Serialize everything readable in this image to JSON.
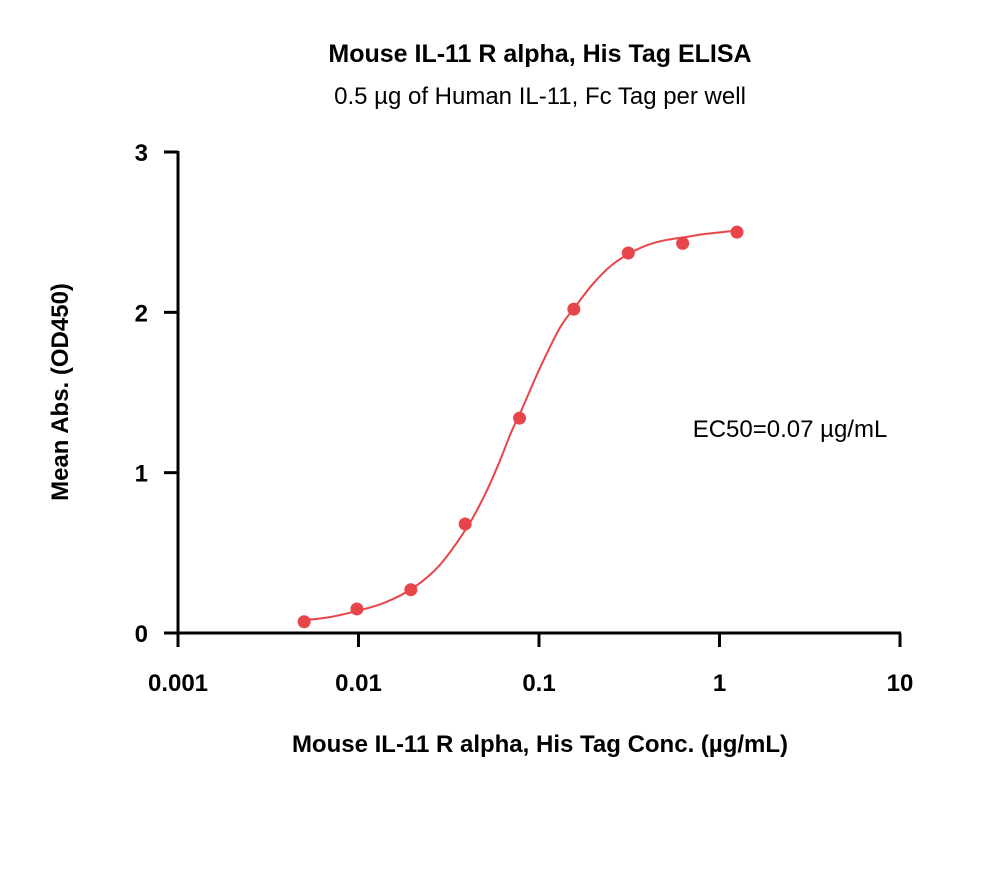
{
  "chart_data": {
    "type": "scatter",
    "title": "Mouse IL-11 R alpha, His Tag ELISA",
    "subtitle": "0.5 µg of Human IL-11, Fc Tag per well",
    "xlabel": "Mouse IL-11 R alpha, His Tag Conc. (µg/mL)",
    "ylabel": "Mean Abs. (OD450)",
    "x_scale": "log",
    "xlim": [
      0.001,
      10
    ],
    "ylim": [
      0,
      3
    ],
    "x_ticks": [
      "0.001",
      "0.01",
      "0.1",
      "1",
      "10"
    ],
    "x_tick_values": [
      0.001,
      0.01,
      0.1,
      1,
      10
    ],
    "y_ticks": [
      "0",
      "1",
      "2",
      "3"
    ],
    "y_tick_values": [
      0,
      1,
      2,
      3
    ],
    "grid": false,
    "annotation": "EC50=0.07 µg/mL",
    "colors": {
      "series": "#E8454A",
      "axis": "#000000"
    },
    "series": [
      {
        "points": [
          {
            "x": 0.005,
            "y": 0.07
          },
          {
            "x": 0.0098,
            "y": 0.15
          },
          {
            "x": 0.0195,
            "y": 0.27
          },
          {
            "x": 0.039,
            "y": 0.68
          },
          {
            "x": 0.078,
            "y": 1.34
          },
          {
            "x": 0.156,
            "y": 2.02
          },
          {
            "x": 0.3125,
            "y": 2.37
          },
          {
            "x": 0.625,
            "y": 2.43
          },
          {
            "x": 1.25,
            "y": 2.5
          }
        ]
      }
    ],
    "fit_curve": [
      {
        "x": 0.005,
        "y": 0.08
      },
      {
        "x": 0.007,
        "y": 0.1
      },
      {
        "x": 0.01,
        "y": 0.14
      },
      {
        "x": 0.014,
        "y": 0.19
      },
      {
        "x": 0.02,
        "y": 0.28
      },
      {
        "x": 0.028,
        "y": 0.42
      },
      {
        "x": 0.04,
        "y": 0.66
      },
      {
        "x": 0.05,
        "y": 0.86
      },
      {
        "x": 0.06,
        "y": 1.06
      },
      {
        "x": 0.07,
        "y": 1.25
      },
      {
        "x": 0.08,
        "y": 1.39
      },
      {
        "x": 0.1,
        "y": 1.64
      },
      {
        "x": 0.13,
        "y": 1.9
      },
      {
        "x": 0.16,
        "y": 2.04
      },
      {
        "x": 0.2,
        "y": 2.18
      },
      {
        "x": 0.25,
        "y": 2.29
      },
      {
        "x": 0.32,
        "y": 2.37
      },
      {
        "x": 0.4,
        "y": 2.42
      },
      {
        "x": 0.5,
        "y": 2.45
      },
      {
        "x": 0.65,
        "y": 2.47
      },
      {
        "x": 0.85,
        "y": 2.49
      },
      {
        "x": 1.25,
        "y": 2.51
      }
    ]
  }
}
